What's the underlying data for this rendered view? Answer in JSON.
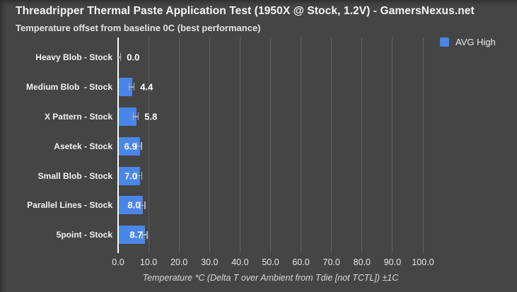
{
  "header": {
    "title": "Threadripper Thermal Paste Application Test (1950X @ Stock, 1.2V) - GamersNexus.net",
    "subtitle": "Temperature offset from baseline 0C (best performance)"
  },
  "legend": {
    "label": "AVG High",
    "swatch_color": "#4a86e8"
  },
  "chart_data": {
    "type": "bar",
    "orientation": "horizontal",
    "title": "Threadripper Thermal Paste Application Test (1950X @ Stock, 1.2V) - GamersNexus.net",
    "subtitle": "Temperature offset from baseline 0C (best performance)",
    "categories": [
      "Heavy Blob - Stock",
      "Medium Blob  - Stock",
      "X Pattern - Stock",
      "Asetek - Stock",
      "Small Blob - Stock",
      "Parallel Lines - Stock",
      "5point - Stock"
    ],
    "series": [
      {
        "name": "AVG High",
        "values": [
          0.0,
          4.4,
          5.8,
          6.9,
          7.0,
          8.0,
          8.7
        ]
      }
    ],
    "value_labels": [
      "0.0",
      "4.4",
      "5.8",
      "6.9",
      "7.0",
      "8.0",
      "8.7"
    ],
    "error_bar_plus_minus": 1.0,
    "xlabel": "Temperature *C (Delta T over Ambient from Tdie [not TCTL]) ±1C",
    "xticks": [
      "0.0",
      "10.0",
      "20.0",
      "30.0",
      "40.0",
      "50.0",
      "60.0",
      "70.0",
      "80.0",
      "90.0",
      "100.0"
    ],
    "xlim": [
      0,
      100
    ],
    "grid": true,
    "legend_position": "top-right",
    "colors": {
      "bar": "#4a86e8",
      "background": "#454545",
      "gridline": "#5f5f5f",
      "baseline": "#fbfbfb",
      "error_bar": "#a9b2bc",
      "value_text": "#ffffff"
    }
  }
}
